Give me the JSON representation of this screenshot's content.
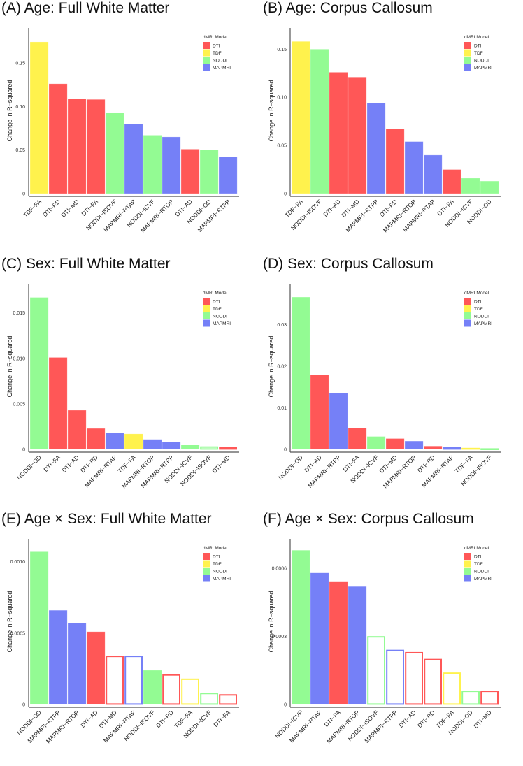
{
  "legend": {
    "title": "dMRI Model",
    "entries": [
      "DTI",
      "TDF",
      "NODDI",
      "MAPMRI"
    ],
    "colors": {
      "DTI": "#FF5757",
      "TDF": "#FFF24D",
      "NODDI": "#93FB93",
      "MAPMRI": "#7580F7"
    }
  },
  "chart_data": [
    {
      "type": "bar",
      "title": "(A) Age: Full White Matter",
      "ylabel": "Change in R−squared",
      "yticks": [
        0,
        0.05,
        0.1,
        0.15
      ],
      "ytick_labels": [
        "0",
        "0.05",
        "0.10",
        "0.15"
      ],
      "ylim": [
        0,
        0.19
      ],
      "categories": [
        "TDF−FA",
        "DTI−RD",
        "DTI−MD",
        "DTI−FA",
        "NODDI−ISOVF",
        "MAPMRI−RTAP",
        "NODDI−ICVF",
        "MAPMRI−RTOP",
        "DTI−AD",
        "NODDI−OD",
        "MAPMRI−RTPP"
      ],
      "models": [
        "TDF",
        "DTI",
        "DTI",
        "DTI",
        "NODDI",
        "MAPMRI",
        "NODDI",
        "MAPMRI",
        "DTI",
        "NODDI",
        "MAPMRI"
      ],
      "values": [
        0.174,
        0.126,
        0.109,
        0.108,
        0.093,
        0.08,
        0.067,
        0.065,
        0.051,
        0.05,
        0.042
      ],
      "filled": [
        true,
        true,
        true,
        true,
        true,
        true,
        true,
        true,
        true,
        true,
        true
      ],
      "legend": "top-right"
    },
    {
      "type": "bar",
      "title": "(B) Age: Corpus Callosum",
      "ylabel": "Change in R−squared",
      "yticks": [
        0,
        0.05,
        0.1,
        0.15
      ],
      "ytick_labels": [
        "0",
        "0.05",
        "0.10",
        "0.15"
      ],
      "ylim": [
        0,
        0.172
      ],
      "categories": [
        "TDF−FA",
        "NODDI−ISOVF",
        "DTI−AD",
        "DTI−MD",
        "MAPMRI−RTPP",
        "DTI−RD",
        "MAPMRI−RTOP",
        "MAPMRI−RTAP",
        "DTI−FA",
        "NODDI−ICVF",
        "NODDI−OD"
      ],
      "models": [
        "TDF",
        "NODDI",
        "DTI",
        "DTI",
        "MAPMRI",
        "DTI",
        "MAPMRI",
        "MAPMRI",
        "DTI",
        "NODDI",
        "NODDI"
      ],
      "values": [
        0.158,
        0.15,
        0.126,
        0.121,
        0.094,
        0.067,
        0.054,
        0.04,
        0.025,
        0.016,
        0.013
      ],
      "filled": [
        true,
        true,
        true,
        true,
        true,
        true,
        true,
        true,
        true,
        true,
        true
      ],
      "legend": "top-right"
    },
    {
      "type": "bar",
      "title": "(C) Sex: Full White Matter",
      "ylabel": "Change in R−squared",
      "yticks": [
        0,
        0.005,
        0.01,
        0.015
      ],
      "ytick_labels": [
        "0",
        "0.005",
        "0.010",
        "0.015"
      ],
      "ylim": [
        0,
        0.0182
      ],
      "categories": [
        "NODDI−OD",
        "DTI−FA",
        "DTI−AD",
        "DTI−RD",
        "MAPMRI−RTAP",
        "TDF−FA",
        "MAPMRI−RTOP",
        "MAPMRI−RTPP",
        "NODDI−ICVF",
        "NODDI−ISOVF",
        "DTI−MD"
      ],
      "models": [
        "NODDI",
        "DTI",
        "DTI",
        "DTI",
        "MAPMRI",
        "TDF",
        "MAPMRI",
        "MAPMRI",
        "NODDI",
        "NODDI",
        "DTI"
      ],
      "values": [
        0.0167,
        0.0101,
        0.0043,
        0.0023,
        0.0018,
        0.0017,
        0.0011,
        0.0008,
        0.0005,
        0.0003,
        0.0002
      ],
      "filled": [
        true,
        true,
        true,
        true,
        true,
        true,
        true,
        true,
        true,
        false,
        false
      ],
      "legend": "top-right"
    },
    {
      "type": "bar",
      "title": "(D) Sex: Corpus Callosum",
      "ylabel": "Change in R−squared",
      "yticks": [
        0,
        0.01,
        0.02,
        0.03
      ],
      "ytick_labels": [
        "0",
        "0.01",
        "0.02",
        "0.03"
      ],
      "ylim": [
        0,
        0.0398
      ],
      "categories": [
        "NODDI−OD",
        "DTI−AD",
        "MAPMRI−RTPP",
        "DTI−FA",
        "NODDI−ICVF",
        "DTI−MD",
        "MAPMRI−RTOP",
        "DTI−RD",
        "MAPMRI−RTAP",
        "TDF−FA",
        "NODDI−ISOVF"
      ],
      "models": [
        "NODDI",
        "DTI",
        "MAPMRI",
        "DTI",
        "NODDI",
        "DTI",
        "MAPMRI",
        "DTI",
        "MAPMRI",
        "TDF",
        "NODDI"
      ],
      "values": [
        0.0366,
        0.0179,
        0.0136,
        0.0052,
        0.0031,
        0.0026,
        0.002,
        0.0008,
        0.0005,
        0.0003,
        0.0002
      ],
      "filled": [
        true,
        true,
        true,
        true,
        true,
        true,
        true,
        true,
        false,
        false,
        false
      ],
      "legend": "top-right"
    },
    {
      "type": "bar",
      "title": "(E) Age × Sex: Full White Matter",
      "ylabel": "Change in R−squared",
      "yticks": [
        0,
        0.0005,
        0.001
      ],
      "ytick_labels": [
        "0",
        "0.0005",
        "0.0010"
      ],
      "ylim": [
        0,
        0.00116
      ],
      "categories": [
        "NODDI−OD",
        "MAPMRI−RTPP",
        "MAPMRI−RTOP",
        "DTI−AD",
        "DTI−MD",
        "MAPMRI−RTAP",
        "NODDI−ISOVF",
        "DTI−RD",
        "TDF−FA",
        "NODDI−ICVF",
        "DTI−FA"
      ],
      "models": [
        "NODDI",
        "MAPMRI",
        "MAPMRI",
        "DTI",
        "DTI",
        "MAPMRI",
        "NODDI",
        "DTI",
        "TDF",
        "NODDI",
        "DTI"
      ],
      "values": [
        0.00107,
        0.00066,
        0.00057,
        0.00051,
        0.00034,
        0.00034,
        0.00024,
        0.00021,
        0.00018,
        8e-05,
        7e-05
      ],
      "filled": [
        true,
        true,
        true,
        true,
        false,
        false,
        true,
        false,
        false,
        false,
        false
      ],
      "legend": "top-right"
    },
    {
      "type": "bar",
      "title": "(F) Age × Sex: Corpus Callosum",
      "ylabel": "Change in R−squared",
      "yticks": [
        0,
        0.0003,
        0.0006
      ],
      "ytick_labels": [
        "0",
        "0.0003",
        "0.0006"
      ],
      "ylim": [
        0,
        0.00073
      ],
      "categories": [
        "NODDI−ICVF",
        "MAPMRI−RTAP",
        "DTI−FA",
        "MAPMRI−RTOP",
        "NODDI−ISOVF",
        "MAPMRI−RTPP",
        "DTI−AD",
        "DTI−RD",
        "TDF−FA",
        "NODDI−OD",
        "DTI−MD"
      ],
      "models": [
        "NODDI",
        "MAPMRI",
        "DTI",
        "MAPMRI",
        "NODDI",
        "MAPMRI",
        "DTI",
        "DTI",
        "TDF",
        "NODDI",
        "DTI"
      ],
      "values": [
        0.00068,
        0.00058,
        0.00054,
        0.00052,
        0.0003,
        0.00024,
        0.00023,
        0.0002,
        0.00014,
        6e-05,
        6e-05
      ],
      "filled": [
        true,
        true,
        true,
        true,
        false,
        false,
        false,
        false,
        false,
        false,
        false
      ],
      "legend": "top-right"
    }
  ]
}
